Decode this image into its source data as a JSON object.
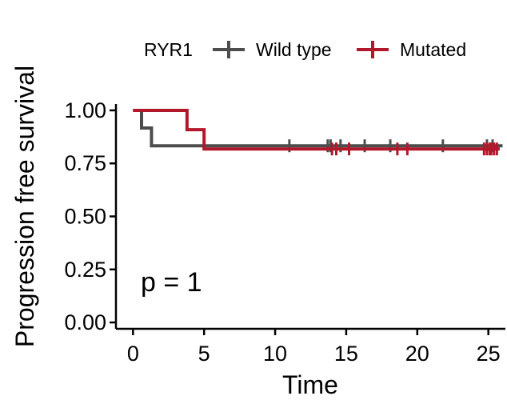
{
  "chart_data": {
    "type": "line",
    "xlabel": "Time",
    "ylabel": "Progression free survival",
    "xlim": [
      -1.2,
      26.2
    ],
    "ylim": [
      -0.03,
      1.03
    ],
    "x_ticks": [
      0,
      5,
      10,
      15,
      20,
      25
    ],
    "y_ticks": [
      0,
      0.25,
      0.5,
      0.75,
      1
    ],
    "x_tick_labels": [
      "0",
      "5",
      "10",
      "15",
      "20",
      "25"
    ],
    "y_tick_labels": [
      "0.00",
      "0.25",
      "0.50",
      "0.75",
      "1.00"
    ],
    "grid": false,
    "legend": {
      "title": "RYR1",
      "position": "top"
    },
    "annotation": "p = 1",
    "series": [
      {
        "name": "Wild type",
        "color": "#4d4d4d",
        "steps": [
          [
            0,
            1.0
          ],
          [
            0.6,
            0.917
          ],
          [
            1.3,
            0.833
          ],
          [
            26,
            0.833
          ]
        ],
        "censor_times": [
          11,
          13.7,
          13.9,
          14.6,
          16.3,
          18.1,
          21.8,
          24.9,
          25.3
        ]
      },
      {
        "name": "Mutated",
        "color": "#b2182b",
        "steps": [
          [
            0,
            1.0
          ],
          [
            3.8,
            0.909
          ],
          [
            5.0,
            0.818
          ],
          [
            25.8,
            0.818
          ]
        ],
        "censor_times": [
          14,
          14.3,
          15.2,
          18.6,
          19.3,
          24.7,
          24.9,
          25.1,
          25.2,
          25.4,
          25.6
        ]
      }
    ]
  }
}
